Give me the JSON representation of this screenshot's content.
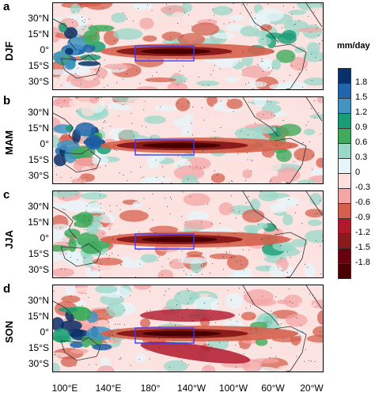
{
  "panels": [
    {
      "letter": "a",
      "season": "DJF"
    },
    {
      "letter": "b",
      "season": "MAM"
    },
    {
      "letter": "c",
      "season": "JJA"
    },
    {
      "letter": "d",
      "season": "SON"
    }
  ],
  "lat_labels": [
    "30°N",
    "15°N",
    "0°",
    "15°S",
    "30°S"
  ],
  "lon_labels": [
    "100°E",
    "140°E",
    "180°",
    "140°W",
    "100°W",
    "60°W",
    "20°W"
  ],
  "colorbar": {
    "title": "mm/day",
    "ticks": [
      "1.8",
      "1.5",
      "1.2",
      "0.9",
      "0.6",
      "0.3",
      "0",
      "-0.3",
      "-0.6",
      "-0.9",
      "-1.2",
      "-1.5",
      "-1.8"
    ],
    "colors": [
      "#08306b",
      "#2166ac",
      "#4393c3",
      "#1b9e77",
      "#41ab5d",
      "#99d8c9",
      "#e5f5f9",
      "#fde0dd",
      "#f4a6a6",
      "#d6604d",
      "#b2182b",
      "#8b1a1a",
      "#67000d",
      "#4a0000"
    ]
  },
  "colors": {
    "box_outline": "#3b3bff",
    "coast": "#333333"
  }
}
